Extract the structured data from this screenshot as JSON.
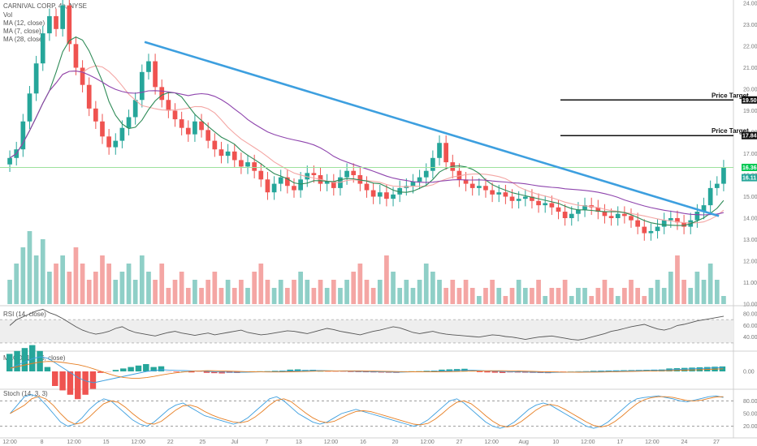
{
  "header": {
    "symbol": "CARNIVAL CORP, 4h, NYSE",
    "vol_label": "Vol",
    "ma_labels": [
      "MA (12, close)",
      "MA (7, close)",
      "MA (28, close)"
    ]
  },
  "panes": {
    "rsi_label": "RSI (14, close)",
    "macd_label": "MACD (12, 26, close)",
    "stoch_label": "Stoch (14, 3, 3)"
  },
  "annotations": {
    "target1_label": "Price Target",
    "target1_value": "19.50",
    "target2_label": "Price Target",
    "target2_value": "17.84",
    "last_price": "16.36",
    "prev_price": "16.11"
  },
  "colors": {
    "up": "#26a69a",
    "down": "#ef5350",
    "up_vol": "#8fcfc7",
    "down_vol": "#f4a6a4",
    "trendline": "#3d9fdf",
    "ma12": "#f4a6a4",
    "ma7": "#2e8b57",
    "ma28": "#8e44ad",
    "macd_line": "#3d9fdf",
    "signal_line": "#e67e22",
    "stoch_k": "#3d9fdf",
    "stoch_d": "#e67e22",
    "rsi_line": "#555555",
    "horizontal_green": "#9de29d"
  },
  "chart_data": {
    "type": "candlestick",
    "price_axis_ticks": [
      "24.00",
      "23.00",
      "22.00",
      "21.00",
      "20.00",
      "19.00",
      "18.00",
      "17.00",
      "16.00",
      "15.00",
      "14.00",
      "13.00",
      "12.00",
      "11.00",
      "10.00"
    ],
    "rsi_axis_ticks": [
      "80.00",
      "60.00",
      "40.00"
    ],
    "macd_axis_ticks": [
      "0.00"
    ],
    "stoch_axis_ticks": [
      "80.00",
      "50.00",
      "20.00"
    ],
    "time_labels": [
      "12:00",
      "8",
      "12:00",
      "15",
      "12:00",
      "22",
      "25",
      "Jul",
      "7",
      "13",
      "12:00",
      "16",
      "20",
      "12:00",
      "27",
      "12:00",
      "Aug",
      "10",
      "12:00",
      "17",
      "12:00",
      "24",
      "27"
    ],
    "ylim": [
      10,
      24
    ],
    "trendline": {
      "start": [
        0.19,
        22.2
      ],
      "end": [
        0.98,
        14.1
      ]
    },
    "price_targets": [
      19.5,
      17.84
    ],
    "closes": [
      16.8,
      17.2,
      18.5,
      19.8,
      21.2,
      22.6,
      23.4,
      22.8,
      23.9,
      22.1,
      21.0,
      20.2,
      19.1,
      18.5,
      17.8,
      17.3,
      17.6,
      18.2,
      18.7,
      19.5,
      20.8,
      21.3,
      20.1,
      19.5,
      19.0,
      18.6,
      18.2,
      17.9,
      18.5,
      18.1,
      17.6,
      17.2,
      16.9,
      17.1,
      16.7,
      16.4,
      16.6,
      16.2,
      15.8,
      15.2,
      15.6,
      15.9,
      15.5,
      15.3,
      15.8,
      16.1,
      16.0,
      15.6,
      15.7,
      15.4,
      15.9,
      16.2,
      16.0,
      15.6,
      15.3,
      15.0,
      15.2,
      14.9,
      15.1,
      15.4,
      15.5,
      15.7,
      15.9,
      16.2,
      16.8,
      17.5,
      16.6,
      16.2,
      15.8,
      15.6,
      15.4,
      15.5,
      15.3,
      15.1,
      15.2,
      15.0,
      14.8,
      14.9,
      15.0,
      14.8,
      14.6,
      14.7,
      14.5,
      14.3,
      14.0,
      14.2,
      14.4,
      14.6,
      14.5,
      14.3,
      14.1,
      14.0,
      14.2,
      14.1,
      13.9,
      13.6,
      13.3,
      13.4,
      13.6,
      13.9,
      14.0,
      13.8,
      13.6,
      13.9,
      14.3,
      14.6,
      15.4,
      15.6,
      16.36
    ],
    "volumes": [
      0.3,
      0.5,
      0.7,
      0.9,
      0.6,
      0.8,
      0.4,
      0.5,
      0.6,
      0.4,
      0.7,
      0.5,
      0.3,
      0.4,
      0.6,
      0.5,
      0.3,
      0.4,
      0.5,
      0.3,
      0.6,
      0.4,
      0.3,
      0.5,
      0.2,
      0.3,
      0.4,
      0.2,
      0.3,
      0.2,
      0.3,
      0.4,
      0.2,
      0.3,
      0.2,
      0.3,
      0.2,
      0.4,
      0.5,
      0.3,
      0.2,
      0.3,
      0.2,
      0.3,
      0.4,
      0.3,
      0.2,
      0.3,
      0.2,
      0.3,
      0.2,
      0.3,
      0.4,
      0.5,
      0.3,
      0.2,
      0.3,
      0.6,
      0.4,
      0.2,
      0.3,
      0.2,
      0.3,
      0.5,
      0.4,
      0.3,
      0.2,
      0.3,
      0.2,
      0.3,
      0.2,
      0.1,
      0.2,
      0.3,
      0.2,
      0.1,
      0.2,
      0.3,
      0.2,
      0.2,
      0.3,
      0.1,
      0.2,
      0.2,
      0.3,
      0.1,
      0.2,
      0.2,
      0.1,
      0.2,
      0.3,
      0.2,
      0.1,
      0.2,
      0.3,
      0.2,
      0.1,
      0.2,
      0.3,
      0.2,
      0.4,
      0.6,
      0.3,
      0.2,
      0.4,
      0.3,
      0.5,
      0.3,
      0.1
    ],
    "rsi": [
      60,
      70,
      75,
      80,
      85,
      88,
      82,
      78,
      72,
      65,
      58,
      52,
      48,
      45,
      47,
      50,
      55,
      58,
      52,
      48,
      46,
      44,
      42,
      45,
      48,
      50,
      47,
      45,
      43,
      45,
      47,
      44,
      46,
      48,
      50,
      52,
      48,
      46,
      44,
      45,
      47,
      49,
      51,
      50,
      48,
      46,
      49,
      52,
      55,
      53,
      50,
      48,
      46,
      44,
      47,
      50,
      52,
      55,
      58,
      56,
      52,
      48,
      46,
      48,
      50,
      47,
      45,
      44,
      43,
      42,
      41,
      40,
      42,
      44,
      43,
      41,
      40,
      38,
      36,
      38,
      40,
      41,
      42,
      40,
      38,
      36,
      35,
      37,
      40,
      43,
      46,
      50,
      52,
      55,
      58,
      60,
      62,
      58,
      54,
      52,
      55,
      60,
      62,
      65,
      68,
      70,
      72,
      74,
      76
    ],
    "macd": [
      0.2,
      0.4,
      0.6,
      0.8,
      0.9,
      0.8,
      0.5,
      0.2,
      -0.1,
      -0.4,
      -0.6,
      -0.7,
      -0.6,
      -0.5,
      -0.4,
      -0.3,
      -0.2,
      -0.1,
      0.0,
      0.05,
      0.1,
      0.08,
      0.06,
      0.05,
      0.03,
      0.02,
      0.0,
      -0.02,
      -0.04,
      -0.05,
      -0.06,
      -0.05,
      -0.04,
      -0.03,
      -0.02,
      -0.01,
      0.0,
      0.02,
      0.04,
      0.05,
      0.06,
      0.05,
      0.04,
      0.03,
      0.02,
      0.01,
      0.0,
      -0.01,
      -0.02,
      -0.03,
      -0.04,
      -0.05,
      -0.04,
      -0.03,
      -0.02,
      -0.01,
      0.0,
      0.02,
      0.04,
      0.06,
      0.08,
      0.07,
      0.05,
      0.03,
      0.01,
      -0.01,
      -0.02,
      -0.03,
      -0.04,
      -0.05,
      -0.06,
      -0.07,
      -0.06,
      -0.05,
      -0.04,
      -0.03,
      -0.02,
      -0.01,
      0.0,
      0.01,
      0.02,
      0.03,
      0.04,
      0.05,
      0.06,
      0.07,
      0.08,
      0.1,
      0.12,
      0.14,
      0.16,
      0.18,
      0.2,
      0.22,
      0.24
    ],
    "stoch_k": [
      50,
      70,
      90,
      95,
      88,
      70,
      50,
      30,
      20,
      25,
      40,
      60,
      75,
      85,
      80,
      65,
      50,
      35,
      25,
      20,
      30,
      45,
      60,
      70,
      75,
      65,
      55,
      45,
      40,
      35,
      30,
      25,
      30,
      40,
      55,
      70,
      85,
      90,
      80,
      65,
      50,
      40,
      30,
      25,
      30,
      40,
      50,
      55,
      60,
      55,
      50,
      45,
      40,
      35,
      30,
      25,
      20,
      25,
      35,
      50,
      65,
      80,
      85,
      75,
      60,
      45,
      30,
      20,
      15,
      20,
      30,
      45,
      60,
      70,
      75,
      70,
      60,
      50,
      40,
      30,
      20,
      15,
      20,
      30,
      45,
      60,
      75,
      85,
      88,
      90,
      92,
      88,
      85,
      80,
      78,
      82,
      86,
      90,
      92,
      88
    ]
  }
}
